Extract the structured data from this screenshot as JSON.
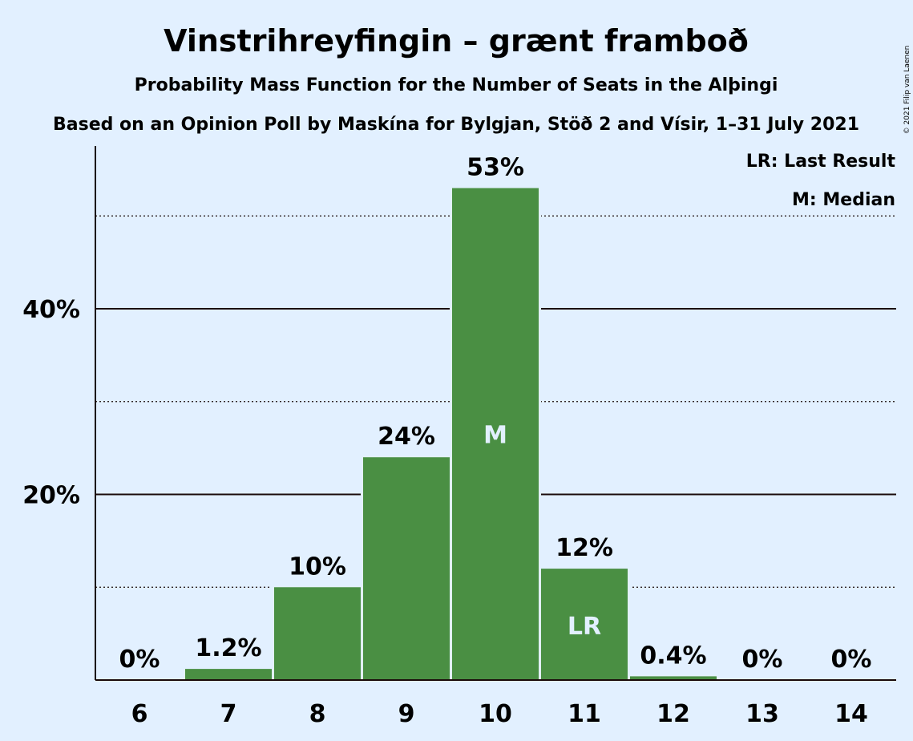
{
  "chart_data": {
    "type": "bar",
    "title": "Vinstrihreyfingin – grænt framboð",
    "subtitle": "Probability Mass Function for the Number of Seats in the Alþingi",
    "subtitle2": "Based on an Opinion Poll by Maskína for Bylgjan, Stöð 2 and Vísir, 1–31 July 2021",
    "copyright": "© 2021 Filip van Laenen",
    "legend": [
      "LR: Last Result",
      "M: Median"
    ],
    "legend_position": "top-right",
    "categories": [
      "6",
      "7",
      "8",
      "9",
      "10",
      "11",
      "12",
      "13",
      "14"
    ],
    "values": [
      0,
      1.2,
      10,
      24,
      53,
      12,
      0.4,
      0,
      0
    ],
    "data_labels": [
      "0%",
      "1.2%",
      "10%",
      "24%",
      "53%",
      "12%",
      "0.4%",
      "0%",
      "0%"
    ],
    "bar_marks": {
      "10": "M",
      "11": "LR"
    },
    "y_ticks": [
      {
        "value": 20,
        "label": "20%"
      },
      {
        "value": 40,
        "label": "40%"
      }
    ],
    "minor_gridlines": [
      10,
      30,
      50
    ],
    "ylim": [
      0,
      57
    ],
    "bar_color": "#4a8f43",
    "grid": true,
    "xlabel": "",
    "ylabel": ""
  }
}
